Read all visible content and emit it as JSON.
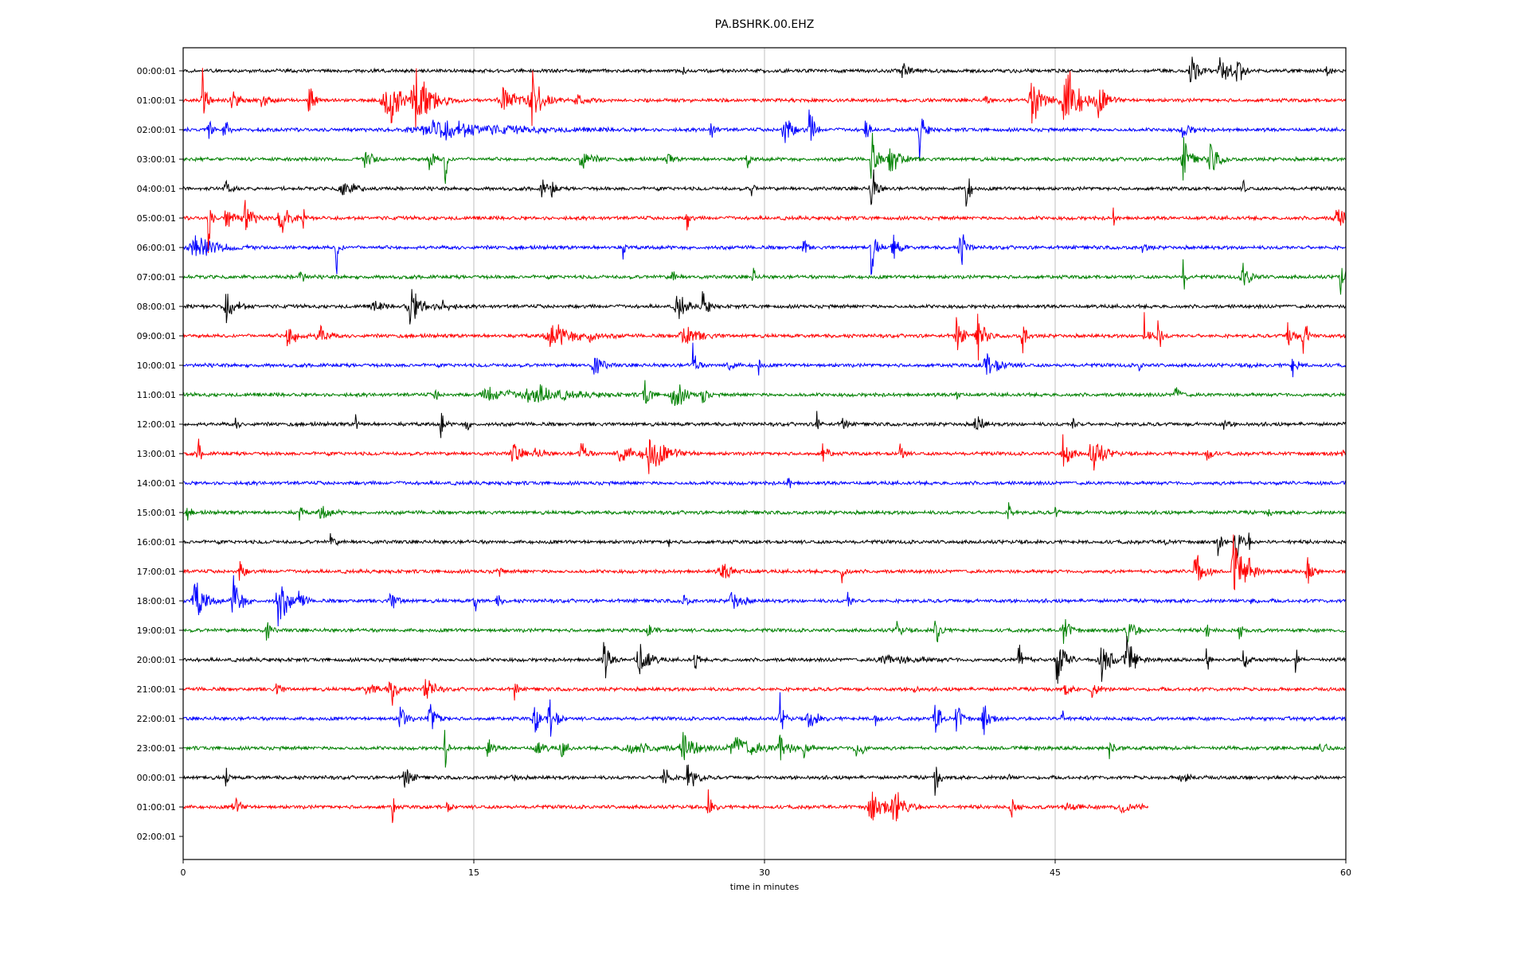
{
  "chart_data": {
    "type": "line",
    "title": "PA.BSHRK.00.EHZ",
    "xlabel": "time in minutes",
    "ylabel": "",
    "xlim": [
      0,
      60
    ],
    "xticks": [
      0,
      15,
      30,
      45,
      60
    ],
    "grid": "vertical",
    "colors": [
      "#000000",
      "#ff0000",
      "#0000ff",
      "#008000"
    ],
    "row_labels": [
      "00:00:01",
      "01:00:01",
      "02:00:01",
      "03:00:01",
      "04:00:01",
      "05:00:01",
      "06:00:01",
      "07:00:01",
      "08:00:01",
      "09:00:01",
      "10:00:01",
      "11:00:01",
      "12:00:01",
      "13:00:01",
      "14:00:01",
      "15:00:01",
      "16:00:01",
      "17:00:01",
      "18:00:01",
      "19:00:01",
      "20:00:01",
      "21:00:01",
      "22:00:01",
      "23:00:01",
      "00:00:01",
      "01:00:01",
      "02:00:01"
    ],
    "trace_end_minutes": [
      60,
      60,
      60,
      60,
      60,
      60,
      60,
      60,
      60,
      60,
      60,
      60,
      60,
      60,
      60,
      60,
      60,
      60,
      60,
      60,
      60,
      60,
      60,
      60,
      60,
      49.8,
      0
    ],
    "events_note": "each event: [minute, relative amplitude in row spacings, duration in minutes]",
    "events": [
      [
        [
          37.1,
          0.6,
          0.5
        ],
        [
          52,
          0.8,
          0.6
        ],
        [
          53.5,
          0.7,
          0.8
        ],
        [
          54.4,
          1.2,
          0.3
        ],
        [
          59,
          0.3,
          0.3
        ],
        [
          25.8,
          0.15,
          0.2
        ]
      ],
      [
        [
          1,
          1.4,
          0.3
        ],
        [
          2.5,
          0.5,
          0.6
        ],
        [
          4,
          0.4,
          0.6
        ],
        [
          6.5,
          1.2,
          0.3
        ],
        [
          10.5,
          1.2,
          1.2
        ],
        [
          12,
          1.6,
          1.2
        ],
        [
          16.5,
          0.6,
          1.2
        ],
        [
          18,
          1.2,
          0.8
        ],
        [
          20.3,
          0.4,
          0.6
        ],
        [
          43.8,
          1.0,
          1
        ],
        [
          45.5,
          1.6,
          1.2
        ],
        [
          47.2,
          0.6,
          0.8
        ],
        [
          41.4,
          0.4,
          0.2
        ]
      ],
      [
        [
          1.3,
          0.6,
          0.3
        ],
        [
          2.1,
          0.8,
          0.3
        ],
        [
          13,
          0.4,
          5.5
        ],
        [
          27.2,
          0.4,
          0.4
        ],
        [
          31,
          0.9,
          0.6
        ],
        [
          32.3,
          1.0,
          0.4
        ],
        [
          35.2,
          1.2,
          0.2
        ],
        [
          38,
          1.1,
          0.4
        ],
        [
          51.6,
          0.4,
          0.6
        ]
      ],
      [
        [
          9.4,
          0.5,
          0.6
        ],
        [
          12.7,
          0.6,
          0.4
        ],
        [
          20.5,
          0.5,
          0.8
        ],
        [
          25,
          0.3,
          0.4
        ],
        [
          29.1,
          0.5,
          0.2
        ],
        [
          35.5,
          1.4,
          0.4
        ],
        [
          36.5,
          0.8,
          0.8
        ],
        [
          51.6,
          0.9,
          0.6
        ],
        [
          53,
          0.8,
          0.6
        ],
        [
          13.5,
          1.6,
          0.2
        ]
      ],
      [
        [
          2.2,
          0.3,
          0.6
        ],
        [
          8.2,
          0.4,
          1
        ],
        [
          18.5,
          0.4,
          0.4
        ],
        [
          19,
          0.5,
          0.3
        ],
        [
          29.3,
          0.6,
          0.2
        ],
        [
          35.5,
          1.2,
          0.4
        ],
        [
          40.4,
          1.2,
          0.3
        ],
        [
          54.7,
          0.4,
          0.2
        ]
      ],
      [
        [
          1.3,
          1.8,
          0.2
        ],
        [
          2.2,
          0.8,
          0.5
        ],
        [
          3.2,
          0.8,
          0.6
        ],
        [
          5,
          0.9,
          0.6
        ],
        [
          6.2,
          0.5,
          0.2
        ],
        [
          26,
          0.8,
          0.2
        ],
        [
          48,
          0.4,
          0.2
        ],
        [
          59.5,
          0.5,
          0.8
        ]
      ],
      [
        [
          0.6,
          0.5,
          1.8
        ],
        [
          7.9,
          1.6,
          0.2
        ],
        [
          22.7,
          0.4,
          0.2
        ],
        [
          32,
          0.9,
          0.2
        ],
        [
          35.5,
          1.1,
          0.4
        ],
        [
          36.6,
          0.9,
          0.4
        ],
        [
          40.1,
          1.1,
          0.4
        ],
        [
          49.5,
          0.2,
          0.4
        ]
      ],
      [
        [
          6,
          0.5,
          0.3
        ],
        [
          25.2,
          0.4,
          0.3
        ],
        [
          29.4,
          0.6,
          0.2
        ],
        [
          51.6,
          0.9,
          0.2
        ],
        [
          54.7,
          0.6,
          0.6
        ],
        [
          59.7,
          0.8,
          0.4
        ]
      ],
      [
        [
          2.2,
          0.6,
          0.8
        ],
        [
          9.8,
          0.3,
          0.6
        ],
        [
          11.7,
          0.8,
          1
        ],
        [
          13.4,
          0.3,
          0.6
        ],
        [
          25.5,
          0.8,
          0.6
        ],
        [
          26.8,
          0.8,
          0.4
        ]
      ],
      [
        [
          5.4,
          0.6,
          0.8
        ],
        [
          7,
          0.6,
          0.6
        ],
        [
          19,
          0.5,
          2
        ],
        [
          21,
          0.6,
          0.3
        ],
        [
          25.8,
          0.5,
          1.2
        ],
        [
          39.9,
          0.8,
          0.5
        ],
        [
          41,
          1.1,
          0.5
        ],
        [
          43.3,
          0.9,
          0.3
        ],
        [
          49.6,
          0.9,
          0.3
        ],
        [
          50.3,
          1.0,
          0.3
        ],
        [
          57,
          0.8,
          0.4
        ],
        [
          57.8,
          0.9,
          0.4
        ]
      ],
      [
        [
          21.2,
          0.6,
          0.6
        ],
        [
          26.3,
          1.0,
          0.3
        ],
        [
          28.1,
          0.4,
          0.4
        ],
        [
          29.7,
          0.4,
          0.2
        ],
        [
          41.4,
          0.5,
          1.2
        ],
        [
          49.3,
          0.3,
          0.2
        ],
        [
          57.2,
          0.5,
          0.4
        ],
        [
          55,
          0.2,
          0.2
        ]
      ],
      [
        [
          13,
          0.5,
          0.2
        ],
        [
          15.7,
          0.3,
          2
        ],
        [
          18,
          0.4,
          2.8
        ],
        [
          23.8,
          0.8,
          0.4
        ],
        [
          25.3,
          0.8,
          0.8
        ],
        [
          26.8,
          0.6,
          0.3
        ],
        [
          39.9,
          0.6,
          0.2
        ],
        [
          51.2,
          0.4,
          0.4
        ]
      ],
      [
        [
          2.7,
          0.3,
          0.2
        ],
        [
          8.9,
          0.4,
          0.2
        ],
        [
          13.3,
          1.0,
          0.2
        ],
        [
          14.6,
          0.6,
          0.2
        ],
        [
          32.7,
          0.6,
          0.2
        ],
        [
          34,
          0.4,
          0.3
        ],
        [
          40.9,
          0.8,
          0.4
        ],
        [
          45.9,
          0.4,
          0.3
        ],
        [
          53.7,
          0.2,
          0.4
        ]
      ],
      [
        [
          0.75,
          1.0,
          0.2
        ],
        [
          17,
          0.6,
          0.6
        ],
        [
          18.2,
          0.3,
          0.6
        ],
        [
          20.5,
          0.8,
          0.4
        ],
        [
          22.5,
          0.5,
          1
        ],
        [
          24,
          0.9,
          1.4
        ],
        [
          33,
          0.5,
          0.4
        ],
        [
          37,
          0.6,
          0.3
        ],
        [
          45.4,
          1.0,
          0.5
        ],
        [
          46.9,
          1.0,
          0.8
        ],
        [
          52.8,
          0.8,
          0.3
        ],
        [
          59.8,
          0.2,
          0.3
        ]
      ],
      [
        [
          31.2,
          0.5,
          0.2
        ]
      ],
      [
        [
          0.2,
          0.3,
          0.3
        ],
        [
          6,
          0.6,
          0.2
        ],
        [
          7.1,
          0.4,
          0.6
        ],
        [
          42.6,
          0.5,
          0.3
        ],
        [
          45,
          0.3,
          0.2
        ],
        [
          56,
          0.2,
          0.2
        ]
      ],
      [
        [
          7.6,
          0.3,
          0.4
        ],
        [
          25,
          0.3,
          0.2
        ],
        [
          50.6,
          0.2,
          0.3
        ],
        [
          53.4,
          0.5,
          0.3
        ],
        [
          54.3,
          1.2,
          0.4
        ],
        [
          55,
          0.3,
          0.2
        ]
      ],
      [
        [
          2.9,
          0.5,
          0.4
        ],
        [
          16.2,
          0.3,
          0.3
        ],
        [
          27.8,
          0.4,
          1.0
        ],
        [
          34,
          0.5,
          0.3
        ],
        [
          52.2,
          1.1,
          0.6
        ],
        [
          54.2,
          1.4,
          0.8
        ],
        [
          55,
          0.7,
          0.3
        ],
        [
          58,
          0.9,
          0.4
        ]
      ],
      [
        [
          0.6,
          1.0,
          0.8
        ],
        [
          2.6,
          1.2,
          0.6
        ],
        [
          4.9,
          1.1,
          0.8
        ],
        [
          6,
          0.9,
          0.3
        ],
        [
          10.7,
          0.4,
          0.6
        ],
        [
          15,
          1.0,
          0.2
        ],
        [
          16.2,
          0.3,
          0.3
        ],
        [
          25.8,
          0.4,
          0.3
        ],
        [
          28.3,
          0.5,
          0.8
        ],
        [
          34.3,
          0.4,
          0.3
        ],
        [
          55.1,
          0.4,
          0.2
        ]
      ],
      [
        [
          4.3,
          0.6,
          0.3
        ],
        [
          24,
          0.4,
          0.4
        ],
        [
          36.8,
          0.4,
          0.4
        ],
        [
          38.8,
          0.8,
          0.4
        ],
        [
          45.4,
          0.7,
          0.5
        ],
        [
          48.7,
          0.6,
          0.6
        ],
        [
          52.8,
          0.4,
          0.3
        ],
        [
          54.5,
          0.4,
          0.3
        ]
      ],
      [
        [
          21.7,
          0.9,
          0.5
        ],
        [
          23.5,
          0.9,
          0.8
        ],
        [
          26.4,
          0.9,
          0.2
        ],
        [
          36.2,
          0.2,
          2.5
        ],
        [
          43.1,
          0.8,
          0.5
        ],
        [
          45.1,
          1.2,
          0.6
        ],
        [
          47.4,
          0.7,
          1
        ],
        [
          48.7,
          0.9,
          0.6
        ],
        [
          52.8,
          0.8,
          0.2
        ],
        [
          54.7,
          0.7,
          0.3
        ],
        [
          57.4,
          0.7,
          0.2
        ]
      ],
      [
        [
          4.8,
          0.3,
          0.4
        ],
        [
          9.5,
          0.2,
          1.4
        ],
        [
          10.7,
          0.9,
          0.4
        ],
        [
          12.5,
          0.7,
          0.6
        ],
        [
          17.1,
          0.6,
          0.2
        ],
        [
          37.7,
          0.3,
          0.2
        ],
        [
          45.5,
          0.3,
          0.4
        ],
        [
          46.9,
          0.4,
          0.5
        ]
      ],
      [
        [
          11.2,
          0.9,
          0.4
        ],
        [
          12.7,
          0.8,
          0.6
        ],
        [
          18.1,
          1.0,
          0.4
        ],
        [
          18.9,
          1.1,
          0.5
        ],
        [
          30.8,
          1.0,
          0.3
        ],
        [
          32.3,
          0.6,
          0.6
        ],
        [
          35.7,
          0.9,
          0.2
        ],
        [
          38.8,
          1.1,
          0.4
        ],
        [
          39.9,
          0.8,
          0.4
        ],
        [
          41.3,
          0.9,
          0.4
        ],
        [
          45.3,
          0.9,
          0.2
        ]
      ],
      [
        [
          13.5,
          1.1,
          0.2
        ],
        [
          15.7,
          0.5,
          0.4
        ],
        [
          18.2,
          0.3,
          0.8
        ],
        [
          19.5,
          0.5,
          0.4
        ],
        [
          23,
          0.2,
          3
        ],
        [
          25.8,
          0.6,
          1
        ],
        [
          28.5,
          0.5,
          2
        ],
        [
          30.8,
          0.9,
          0.5
        ],
        [
          32,
          0.5,
          0.4
        ],
        [
          34.7,
          0.5,
          0.6
        ],
        [
          47.8,
          0.5,
          0.4
        ],
        [
          58.7,
          0.4,
          0.4
        ]
      ],
      [
        [
          2.2,
          0.6,
          0.2
        ],
        [
          11.4,
          0.6,
          0.5
        ],
        [
          17,
          0.2,
          0.4
        ],
        [
          24.8,
          0.7,
          0.4
        ],
        [
          26,
          0.8,
          0.6
        ],
        [
          38.8,
          0.8,
          0.3
        ],
        [
          51.5,
          0.2,
          0.8
        ],
        [
          42.5,
          0.2,
          0.3
        ]
      ],
      [
        [
          2.6,
          0.5,
          0.5
        ],
        [
          10.8,
          0.9,
          0.2
        ],
        [
          13.6,
          0.2,
          0.4
        ],
        [
          27.1,
          0.6,
          0.4
        ],
        [
          35.5,
          0.6,
          1.2
        ],
        [
          36.7,
          0.8,
          0.8
        ],
        [
          42.7,
          0.5,
          0.4
        ],
        [
          45.5,
          0.2,
          1
        ],
        [
          48.3,
          0.2,
          1.5
        ]
      ],
      []
    ]
  }
}
